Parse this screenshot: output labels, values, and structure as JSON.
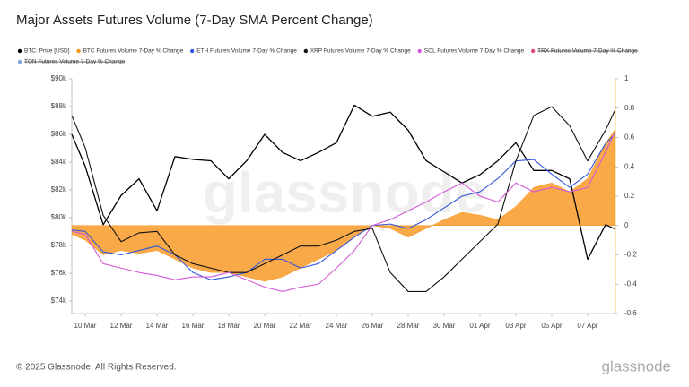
{
  "chart_data": {
    "type": "line",
    "title": "Major Assets Futures Volume (7-Day SMA Percent Change)",
    "watermark": "glassnode",
    "footer": "© 2025 Glassnode. All Rights Reserved.",
    "brand": "glassnode",
    "x": [
      -0.75,
      0,
      1,
      2,
      3,
      4,
      5,
      6,
      7,
      8,
      9,
      10,
      11,
      12,
      13,
      14,
      15,
      16,
      17,
      18,
      19,
      20,
      21,
      22,
      23,
      24,
      25,
      26,
      27,
      28,
      29,
      29.5
    ],
    "xlim": [
      -0.75,
      29.65
    ],
    "xticks": [
      {
        "value": 0,
        "label": "10 Mar"
      },
      {
        "value": 2,
        "label": "12 Mar"
      },
      {
        "value": 4,
        "label": "14 Mar"
      },
      {
        "value": 6,
        "label": "16 Mar"
      },
      {
        "value": 8,
        "label": "18 Mar"
      },
      {
        "value": 10,
        "label": "20 Mar"
      },
      {
        "value": 12,
        "label": "22 Mar"
      },
      {
        "value": 14,
        "label": "24 Mar"
      },
      {
        "value": 16,
        "label": "26 Mar"
      },
      {
        "value": 18,
        "label": "28 Mar"
      },
      {
        "value": 20,
        "label": "30 Mar"
      },
      {
        "value": 22,
        "label": "01 Apr"
      },
      {
        "value": 24,
        "label": "03 Apr"
      },
      {
        "value": 26,
        "label": "05 Apr"
      },
      {
        "value": 28,
        "label": "07 Apr"
      }
    ],
    "ylim": [
      73100,
      90000
    ],
    "yticks": [
      {
        "value": 74000,
        "label": "$74k"
      },
      {
        "value": 76000,
        "label": "$76k"
      },
      {
        "value": 78000,
        "label": "$78k"
      },
      {
        "value": 80000,
        "label": "$80k"
      },
      {
        "value": 82000,
        "label": "$82k"
      },
      {
        "value": 84000,
        "label": "$84k"
      },
      {
        "value": 86000,
        "label": "$86k"
      },
      {
        "value": 88000,
        "label": "$88k"
      },
      {
        "value": 90000,
        "label": "$90k"
      }
    ],
    "y2lim": [
      -0.6,
      1
    ],
    "y2ticks": [
      -0.6,
      -0.4,
      -0.2,
      0,
      0.2,
      0.4,
      0.6,
      0.8,
      1
    ],
    "series": [
      {
        "name": "BTC: Price [USD]",
        "color": "#000000",
        "style": "line",
        "axis": "y",
        "values": [
          86000,
          83700,
          79500,
          81600,
          82800,
          80500,
          84400,
          84200,
          84100,
          82800,
          84100,
          86000,
          84700,
          84100,
          84700,
          85400,
          88100,
          87300,
          87600,
          86300,
          84100,
          83300,
          82500,
          83100,
          84100,
          85400,
          83400,
          83400,
          82800,
          77000,
          79500,
          79200
        ]
      },
      {
        "name": "BTC Futures Volume 7-Day % Change",
        "color": "#f7931a",
        "style": "area",
        "axis": "y2",
        "values": [
          -0.06,
          -0.1,
          -0.2,
          -0.17,
          -0.19,
          -0.17,
          -0.23,
          -0.29,
          -0.32,
          -0.32,
          -0.35,
          -0.38,
          -0.35,
          -0.29,
          -0.23,
          -0.17,
          -0.08,
          0,
          -0.02,
          -0.08,
          -0.02,
          0.04,
          0.09,
          0.07,
          0.04,
          0.13,
          0.26,
          0.29,
          0.23,
          0.32,
          0.56,
          0.65
        ]
      },
      {
        "name": "ETH Futures Volume 7-Day % Change",
        "color": "#3656d8",
        "style": "line",
        "axis": "y2",
        "values": [
          -0.03,
          -0.04,
          -0.18,
          -0.2,
          -0.17,
          -0.14,
          -0.2,
          -0.32,
          -0.37,
          -0.35,
          -0.32,
          -0.23,
          -0.23,
          -0.29,
          -0.26,
          -0.17,
          -0.08,
          0,
          0.01,
          -0.02,
          0.04,
          0.12,
          0.2,
          0.23,
          0.32,
          0.44,
          0.45,
          0.35,
          0.26,
          0.35,
          0.56,
          0.62
        ]
      },
      {
        "name": "XRP Futures Volume 7-Day % Change",
        "color": "#111111",
        "style": "line",
        "axis": "y2",
        "values": [
          0.75,
          0.53,
          0.07,
          -0.11,
          -0.05,
          -0.04,
          -0.2,
          -0.26,
          -0.29,
          -0.32,
          -0.32,
          -0.26,
          -0.2,
          -0.14,
          -0.14,
          -0.1,
          -0.04,
          -0.02,
          -0.32,
          -0.45,
          -0.45,
          -0.35,
          -0.23,
          -0.11,
          0.01,
          0.44,
          0.75,
          0.81,
          0.68,
          0.44,
          0.65,
          0.78
        ]
      },
      {
        "name": "SOL Futures Volume 7-Day % Change",
        "color": "#d35ad6",
        "style": "line",
        "axis": "y2",
        "values": [
          -0.04,
          -0.06,
          -0.26,
          -0.29,
          -0.32,
          -0.34,
          -0.37,
          -0.35,
          -0.35,
          -0.32,
          -0.37,
          -0.42,
          -0.45,
          -0.42,
          -0.4,
          -0.29,
          -0.17,
          0,
          0.04,
          0.1,
          0.16,
          0.23,
          0.29,
          0.2,
          0.16,
          0.29,
          0.23,
          0.26,
          0.23,
          0.26,
          0.5,
          0.63
        ]
      },
      {
        "name": "TRX Futures Volume 7-Day % Change",
        "color": "#e0457b",
        "style": "line",
        "axis": "y2",
        "hidden": true
      },
      {
        "name": "TON Futures Volume 7-Day % Change",
        "color": "#7ea7e0",
        "style": "line",
        "axis": "y2",
        "hidden": true
      }
    ]
  }
}
